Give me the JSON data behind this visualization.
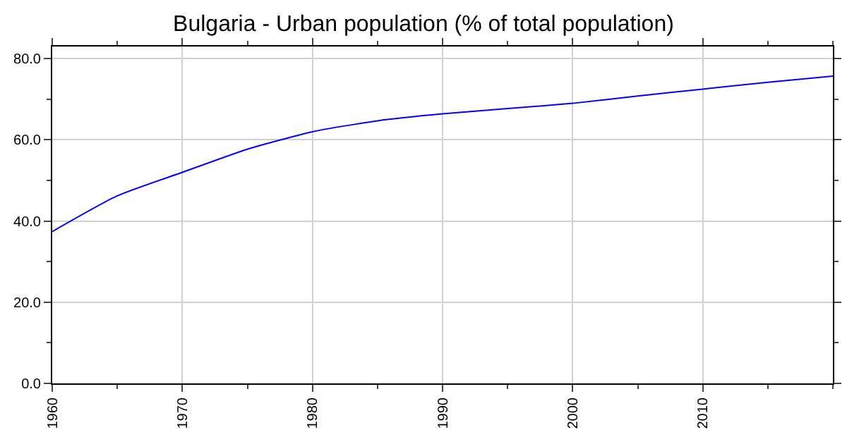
{
  "chart_data": {
    "type": "line",
    "title": "Bulgaria - Urban population (% of total population)",
    "x": [
      1960,
      1965,
      1970,
      1975,
      1980,
      1985,
      1990,
      1995,
      2000,
      2005,
      2010,
      2015,
      2020
    ],
    "series": [
      {
        "color": "#0000ff",
        "values": [
          37.4,
          46.2,
          52.0,
          57.7,
          62.0,
          64.7,
          66.4,
          67.7,
          69.0,
          70.8,
          72.5,
          74.2,
          75.7
        ]
      }
    ],
    "xlim": [
      1960,
      2020
    ],
    "xticks": [
      1960,
      1970,
      1980,
      1990,
      2000,
      2010
    ],
    "ylim": [
      0,
      83
    ],
    "yticks": [
      {
        "value": 0,
        "label": "0.0"
      },
      {
        "value": 20,
        "label": "20.0"
      },
      {
        "value": 40,
        "label": "40.0"
      },
      {
        "value": 60,
        "label": "60.0"
      },
      {
        "value": 80,
        "label": "80.0"
      }
    ],
    "grid": true,
    "marker": "none",
    "line_style": "solid"
  }
}
